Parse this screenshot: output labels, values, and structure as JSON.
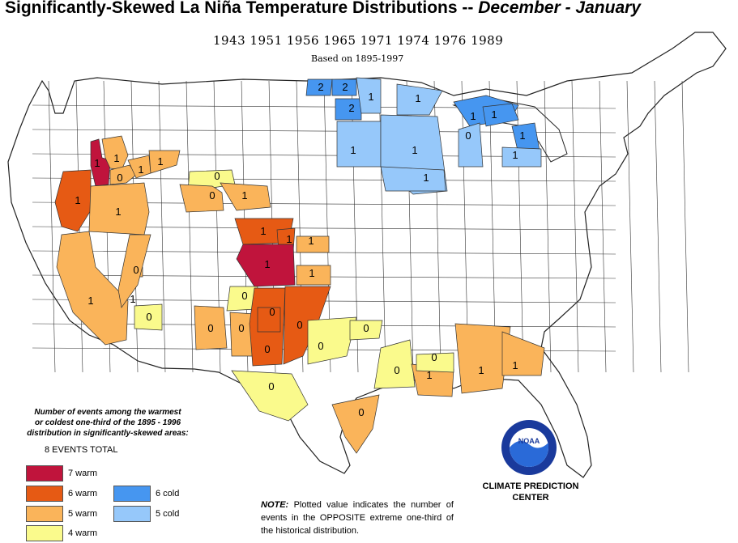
{
  "title": {
    "main": "Significantly-Skewed La Niña Temperature Distributions  --",
    "period": "December - January"
  },
  "subtitle": {
    "years": "1943 1951 1956 1965 1971 1974 1976 1989",
    "based_on": "Based on 1895-1997"
  },
  "legend": {
    "caption_lines": [
      "Number of events among the warmest",
      "or coldest one-third of the 1895 - 1996",
      "distribution in significantly-skewed areas:"
    ],
    "total": "8 EVENTS TOTAL",
    "items": [
      {
        "label": "7 warm",
        "color": "#c0143c"
      },
      {
        "label": "6 warm",
        "color": "#e65a14"
      },
      {
        "label": "5 warm",
        "color": "#fab45a"
      },
      {
        "label": "4 warm",
        "color": "#fafa8c"
      },
      {
        "label": "6 cold",
        "color": "#4696f0"
      },
      {
        "label": "5 cold",
        "color": "#96c8fa"
      }
    ]
  },
  "note": {
    "lead": "NOTE:",
    "text": "Plotted value indicates the number of events in the OPPOSITE extreme one-third of the historical distribution."
  },
  "agency": {
    "line1": "CLIMATE PREDICTION",
    "line2": "CENTER",
    "logo_text": "NOAA",
    "logo_icon": "noaa-logo-icon"
  },
  "regions": [
    {
      "name": "northern-idaho",
      "category": "7 warm",
      "value": "1"
    },
    {
      "name": "western-montana",
      "category": "5 warm",
      "value": "1"
    },
    {
      "name": "montana-central",
      "category": "5 warm",
      "value": "0"
    },
    {
      "name": "montana-east-a",
      "category": "5 warm",
      "value": "1"
    },
    {
      "name": "montana-east-b",
      "category": "5 warm",
      "value": "1"
    },
    {
      "name": "wyoming-north",
      "category": "4 warm",
      "value": "0"
    },
    {
      "name": "wyoming-center",
      "category": "5 warm",
      "value": "0"
    },
    {
      "name": "wyoming-east",
      "category": "5 warm",
      "value": "1"
    },
    {
      "name": "eastern-oregon",
      "category": "6 warm",
      "value": "1"
    },
    {
      "name": "southern-idaho",
      "category": "5 warm",
      "value": "1"
    },
    {
      "name": "california",
      "category": "5 warm",
      "value": "1"
    },
    {
      "name": "nevada-south",
      "category": "5 warm",
      "value": "0"
    },
    {
      "name": "arizona-west",
      "category": "5 warm",
      "value": "1"
    },
    {
      "name": "arizona-south",
      "category": "4 warm",
      "value": "0"
    },
    {
      "name": "colorado-north",
      "category": "6 warm",
      "value": "1"
    },
    {
      "name": "colorado-east",
      "category": "6 warm",
      "value": "1"
    },
    {
      "name": "colorado-south",
      "category": "7 warm",
      "value": "1"
    },
    {
      "name": "kansas-west",
      "category": "5 warm",
      "value": "1"
    },
    {
      "name": "oklahoma-panhandle",
      "category": "5 warm",
      "value": "1"
    },
    {
      "name": "new-mexico-north",
      "category": "4 warm",
      "value": "0"
    },
    {
      "name": "new-mexico-west",
      "category": "5 warm",
      "value": "0"
    },
    {
      "name": "new-mexico-central",
      "category": "5 warm",
      "value": "0"
    },
    {
      "name": "new-mexico-east-a",
      "category": "6 warm",
      "value": "0"
    },
    {
      "name": "new-mexico-east-b",
      "category": "6 warm",
      "value": "0"
    },
    {
      "name": "texas-panhandle",
      "category": "6 warm",
      "value": "0"
    },
    {
      "name": "texas-north",
      "category": "4 warm",
      "value": "0"
    },
    {
      "name": "texas-north-b",
      "category": "4 warm",
      "value": "0"
    },
    {
      "name": "texas-west",
      "category": "4 warm",
      "value": "0"
    },
    {
      "name": "texas-coast",
      "category": "5 warm",
      "value": "0"
    },
    {
      "name": "louisiana-north",
      "category": "4 warm",
      "value": "0"
    },
    {
      "name": "louisiana-south",
      "category": "5 warm",
      "value": "1"
    },
    {
      "name": "mississippi",
      "category": "4 warm",
      "value": "0"
    },
    {
      "name": "alabama",
      "category": "5 warm",
      "value": "1"
    },
    {
      "name": "georgia",
      "category": "5 warm",
      "value": "1"
    },
    {
      "name": "north-dakota-a",
      "category": "6 cold",
      "value": "2"
    },
    {
      "name": "north-dakota-b",
      "category": "6 cold",
      "value": "2"
    },
    {
      "name": "north-dakota-c",
      "category": "6 cold",
      "value": "2"
    },
    {
      "name": "minnesota-north",
      "category": "5 cold",
      "value": "1"
    },
    {
      "name": "minnesota-northeast",
      "category": "5 cold",
      "value": "1"
    },
    {
      "name": "south-dakota-east",
      "category": "5 cold",
      "value": "1"
    },
    {
      "name": "minnesota-central",
      "category": "5 cold",
      "value": "1"
    },
    {
      "name": "iowa-north",
      "category": "5 cold",
      "value": "1"
    },
    {
      "name": "michigan-up",
      "category": "6 cold",
      "value": "1"
    },
    {
      "name": "michigan-up-b",
      "category": "6 cold",
      "value": "1"
    },
    {
      "name": "wisconsin",
      "category": "5 cold",
      "value": "0"
    },
    {
      "name": "michigan-lower",
      "category": "6 cold",
      "value": "1"
    },
    {
      "name": "michigan-lower-b",
      "category": "5 cold",
      "value": "1"
    }
  ]
}
